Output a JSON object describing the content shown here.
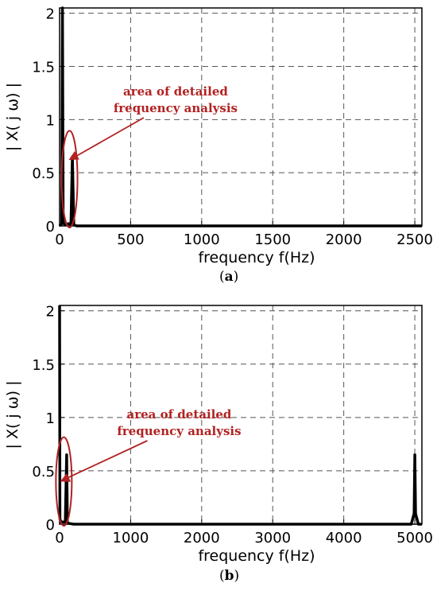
{
  "chart_data": [
    {
      "type": "line",
      "panel_label": "a",
      "xlabel": "frequency f(Hz)",
      "ylabel": "| X( j ω) |",
      "xlim": [
        0,
        2550
      ],
      "ylim": [
        0,
        2.05
      ],
      "xticks": [
        0,
        500,
        1000,
        1500,
        2000,
        2500
      ],
      "xtick_labels": [
        "0",
        "500",
        "1000",
        "1500",
        "2000",
        "2500"
      ],
      "yticks": [
        0,
        0.5,
        1,
        1.5,
        2
      ],
      "ytick_labels": [
        "0",
        "0.5",
        "1",
        "1.5",
        "2"
      ],
      "grid": true,
      "series": [
        {
          "x": [
            0,
            15,
            20,
            25,
            30,
            40,
            50,
            60,
            70,
            80,
            90,
            100,
            120,
            200,
            1000,
            2000,
            2550
          ],
          "y": [
            0,
            0.02,
            2.05,
            0.05,
            0.02,
            0.01,
            0.01,
            0.02,
            0.02,
            0.01,
            0.65,
            0.01,
            0,
            0,
            0,
            0,
            0
          ]
        }
      ],
      "annotation": {
        "text_lines": [
          "area of detailed",
          "frequency analysis"
        ],
        "ellipse_center": [
          70,
          0.44
        ],
        "arrow_to": [
          120,
          0.62
        ]
      }
    },
    {
      "type": "line",
      "panel_label": "b",
      "xlabel": "frequency f(Hz)",
      "ylabel": "| X( j ω) |",
      "xlim": [
        0,
        5100
      ],
      "ylim": [
        0,
        2.05
      ],
      "xticks": [
        0,
        1000,
        2000,
        3000,
        4000,
        5000
      ],
      "xtick_labels": [
        "0",
        "1000",
        "2000",
        "3000",
        "4000",
        "5000"
      ],
      "yticks": [
        0,
        0.5,
        1,
        1.5,
        2
      ],
      "ytick_labels": [
        "0",
        "0.5",
        "1",
        "1.5",
        "2"
      ],
      "grid": true,
      "series": [
        {
          "x": [
            0,
            5,
            20,
            40,
            60,
            80,
            100,
            110,
            200,
            1000,
            2000,
            3000,
            4000,
            4950,
            4990,
            5000,
            5010,
            5050,
            5100
          ],
          "y": [
            2.05,
            0.05,
            0.02,
            0.02,
            0.02,
            0.02,
            0.65,
            0.01,
            0,
            0,
            0,
            0,
            0,
            0,
            0.1,
            0.65,
            0.1,
            0,
            0
          ]
        }
      ],
      "annotation": {
        "text_lines": [
          "area of detailed",
          "frequency analysis"
        ],
        "ellipse_center": [
          60,
          0.4
        ],
        "arrow_to": [
          120,
          0.4
        ]
      }
    }
  ],
  "colors": {
    "line": "#000000",
    "grid": "#555555",
    "annotation": "#b22222"
  }
}
